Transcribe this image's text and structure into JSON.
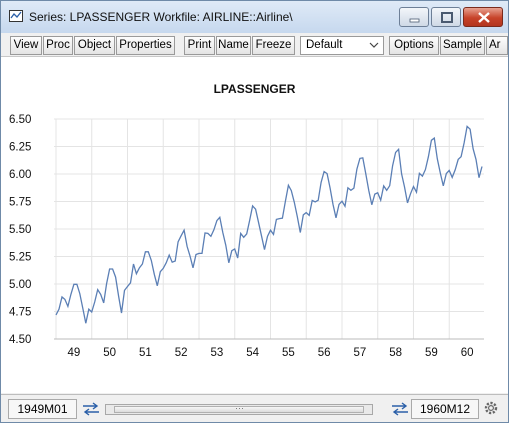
{
  "window": {
    "title": "Series: LPASSENGER   Workfile: AIRLINE::Airline\\",
    "icons": [
      "window-icon",
      "minimize-icon",
      "maximize-icon",
      "close-icon"
    ]
  },
  "toolbar": {
    "buttons": [
      "View",
      "Proc",
      "Object",
      "Properties",
      "Print",
      "Name",
      "Freeze",
      "Options",
      "Sample",
      "Ar"
    ],
    "dropdown_value": "Default"
  },
  "chart_data": {
    "type": "line",
    "title": "LPASSENGER",
    "xlabel": "",
    "ylabel": "",
    "x_ticks": [
      "49",
      "50",
      "51",
      "52",
      "53",
      "54",
      "55",
      "56",
      "57",
      "58",
      "59",
      "60"
    ],
    "y_ticks": [
      "6.50",
      "6.25",
      "6.00",
      "5.75",
      "5.50",
      "5.25",
      "5.00",
      "4.75",
      "4.50"
    ],
    "ylim": [
      4.5,
      6.5
    ],
    "grid": true,
    "legend": "none",
    "line_color": "#5b7fb5",
    "x_start": "1949M01",
    "x_end": "1960M12",
    "values": [
      4.718,
      4.771,
      4.883,
      4.86,
      4.796,
      4.905,
      4.997,
      4.997,
      4.913,
      4.779,
      4.644,
      4.771,
      4.745,
      4.836,
      4.949,
      4.905,
      4.828,
      5.004,
      5.136,
      5.136,
      5.063,
      4.89,
      4.736,
      4.942,
      4.977,
      5.011,
      5.182,
      5.094,
      5.147,
      5.182,
      5.293,
      5.293,
      5.215,
      5.088,
      4.984,
      5.112,
      5.142,
      5.193,
      5.263,
      5.198,
      5.209,
      5.384,
      5.438,
      5.489,
      5.342,
      5.252,
      5.147,
      5.268,
      5.278,
      5.278,
      5.464,
      5.46,
      5.434,
      5.493,
      5.576,
      5.606,
      5.468,
      5.352,
      5.193,
      5.303,
      5.318,
      5.236,
      5.46,
      5.425,
      5.455,
      5.576,
      5.71,
      5.68,
      5.557,
      5.434,
      5.313,
      5.434,
      5.489,
      5.451,
      5.587,
      5.595,
      5.598,
      5.753,
      5.897,
      5.849,
      5.743,
      5.613,
      5.468,
      5.628,
      5.649,
      5.624,
      5.759,
      5.746,
      5.762,
      5.924,
      6.023,
      6.004,
      5.872,
      5.724,
      5.602,
      5.724,
      5.753,
      5.707,
      5.875,
      5.852,
      5.872,
      6.045,
      6.142,
      6.146,
      6.001,
      5.849,
      5.72,
      5.817,
      5.829,
      5.762,
      5.892,
      5.852,
      5.894,
      6.075,
      6.196,
      6.225,
      6.001,
      5.883,
      5.737,
      5.82,
      5.886,
      5.835,
      6.006,
      5.981,
      6.04,
      6.157,
      6.306,
      6.326,
      6.138,
      6.009,
      5.892,
      6.004,
      6.033,
      5.969,
      6.038,
      6.133,
      6.157,
      6.282,
      6.433,
      6.407,
      6.23,
      6.133,
      5.966,
      6.068
    ]
  },
  "status": {
    "start": "1949M01",
    "end": "1960M12"
  },
  "colors": {
    "line": "#5b7fb5",
    "grid": "#e4e4e4",
    "title_bar": "#c6d8ee",
    "close_button": "#c7432a"
  }
}
